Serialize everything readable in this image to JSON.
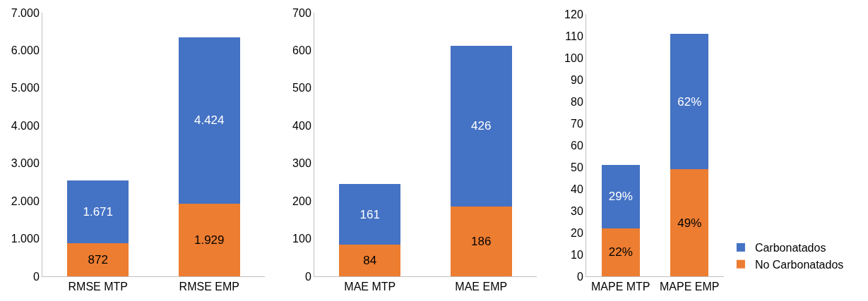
{
  "chart_data": [
    {
      "type": "bar",
      "stacked": true,
      "categories": [
        "RMSE MTP",
        "RMSE EMP"
      ],
      "ylim": [
        0,
        7000
      ],
      "yticks": [
        0,
        {
          "value": 1000,
          "label": "1.000"
        },
        {
          "value": 2000,
          "label": "2.000"
        },
        {
          "value": 3000,
          "label": "3.000"
        },
        {
          "value": 4000,
          "label": "4.000"
        },
        {
          "value": 5000,
          "label": "5.000"
        },
        {
          "value": 6000,
          "label": "6.000"
        },
        {
          "value": 7000,
          "label": "7.000"
        }
      ],
      "grid": false,
      "legend": false,
      "series": [
        {
          "color": "#ed7d31",
          "values": [
            872,
            1929
          ],
          "value_labels": [
            "872",
            "1.929"
          ]
        },
        {
          "color": "#4472c4",
          "values": [
            1671,
            4424
          ],
          "value_labels": [
            "1.671",
            "4.424"
          ]
        }
      ]
    },
    {
      "type": "bar",
      "stacked": true,
      "categories": [
        "MAE MTP",
        "MAE EMP"
      ],
      "ylim": [
        0,
        700
      ],
      "yticks": [
        0,
        100,
        200,
        300,
        400,
        500,
        600,
        700
      ],
      "grid": false,
      "legend": false,
      "data_labels": true,
      "series": [
        {
          "color": "#ed7d31",
          "values": [
            84,
            186
          ]
        },
        {
          "color": "#4472c4",
          "values": [
            161,
            426
          ]
        }
      ]
    },
    {
      "type": "bar",
      "stacked": true,
      "categories": [
        "MAPE MTP",
        "MAPE EMP"
      ],
      "ylim": [
        0,
        120
      ],
      "yticks": [
        0,
        10,
        20,
        30,
        40,
        50,
        60,
        70,
        80,
        90,
        100,
        110,
        120
      ],
      "grid": false,
      "legend": "bottom right",
      "series": [
        {
          "name": "No Carbonatados",
          "color": "#ed7d31",
          "values": [
            22,
            49
          ],
          "value_labels": [
            "22%",
            "49%"
          ]
        },
        {
          "name": "Carbonatados",
          "color": "#4472c4",
          "values": [
            29,
            62
          ],
          "value_labels": [
            "29%",
            "62%"
          ]
        }
      ]
    }
  ]
}
